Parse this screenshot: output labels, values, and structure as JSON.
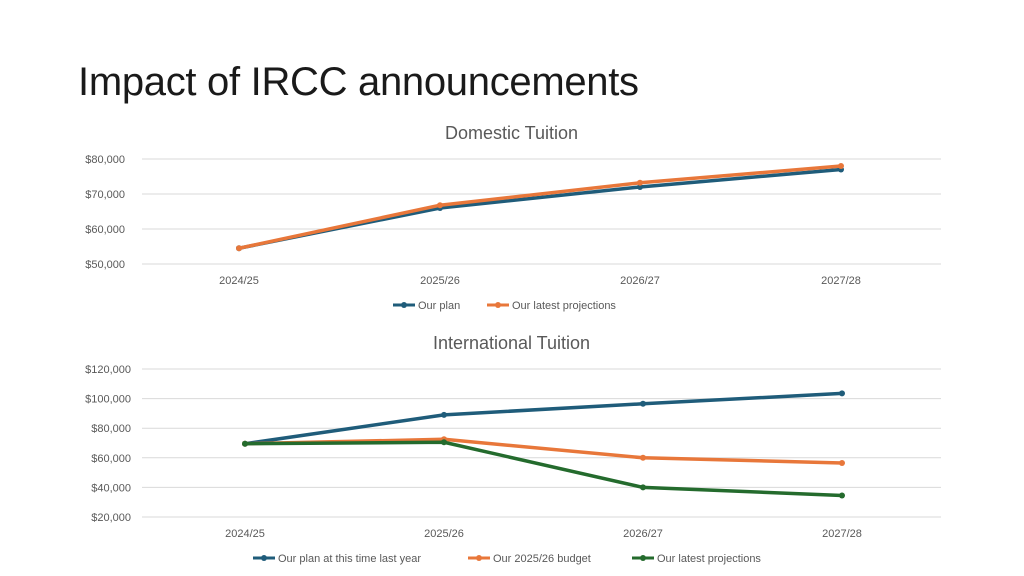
{
  "slide": {
    "title": "Impact of IRCC announcements"
  },
  "chart_data": [
    {
      "type": "line",
      "title": "Domestic Tuition",
      "categories": [
        "2024/25",
        "2025/26",
        "2026/27",
        "2027/28"
      ],
      "ylim": [
        50000,
        80000
      ],
      "yticks": [
        50000,
        60000,
        70000,
        80000
      ],
      "ytick_labels": [
        "$50,000",
        "$60,000",
        "$70,000",
        "$80,000"
      ],
      "grid": true,
      "legend_position": "bottom",
      "series": [
        {
          "name": "Our plan",
          "color": "#1f5c7a",
          "values": [
            54500,
            66000,
            72000,
            77000
          ]
        },
        {
          "name": "Our latest projections",
          "color": "#e8773a",
          "values": [
            54500,
            66800,
            73200,
            78000
          ]
        }
      ]
    },
    {
      "type": "line",
      "title": "International Tuition",
      "categories": [
        "2024/25",
        "2025/26",
        "2026/27",
        "2027/28"
      ],
      "ylim": [
        20000,
        120000
      ],
      "yticks": [
        20000,
        40000,
        60000,
        80000,
        100000,
        120000
      ],
      "ytick_labels": [
        "$20,000",
        "$40,000",
        "$60,000",
        "$80,000",
        "$100,000",
        "$120,000"
      ],
      "grid": true,
      "legend_position": "bottom",
      "series": [
        {
          "name": "Our plan at this time last year",
          "color": "#1f5c7a",
          "values": [
            69500,
            89000,
            96500,
            103500
          ]
        },
        {
          "name": "Our 2025/26 budget",
          "color": "#e8773a",
          "values": [
            69500,
            72500,
            60000,
            56500
          ]
        },
        {
          "name": "Our latest projections",
          "color": "#246b2d",
          "values": [
            69500,
            70500,
            40000,
            34500
          ]
        }
      ]
    }
  ]
}
